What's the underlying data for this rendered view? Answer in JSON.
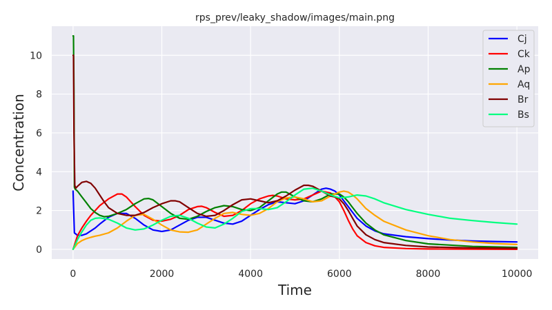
{
  "chart_data": {
    "type": "line",
    "title": "rps_prev/leaky_shadow/images/main.png",
    "xlabel": "Time",
    "ylabel": "Concentration",
    "xlim": [
      -480,
      10480
    ],
    "ylim": [
      -0.5,
      11.5
    ],
    "xticks": [
      0,
      2000,
      4000,
      6000,
      8000,
      10000
    ],
    "yticks": [
      0,
      2,
      4,
      6,
      8,
      10
    ],
    "grid": true,
    "legend_position": "top-right",
    "series": [
      {
        "name": "Cj",
        "color": "#0000ff",
        "x": [
          0,
          30,
          100,
          200,
          300,
          400,
          500,
          600,
          800,
          1000,
          1200,
          1400,
          1600,
          1800,
          2000,
          2200,
          2400,
          2600,
          2800,
          3000,
          3200,
          3400,
          3600,
          3800,
          4000,
          4200,
          4400,
          4600,
          4800,
          5000,
          5200,
          5400,
          5600,
          5700,
          5800,
          5900,
          6000,
          6100,
          6200,
          6300,
          6400,
          6600,
          6800,
          7000,
          7500,
          8000,
          8500,
          9000,
          9500,
          10000
        ],
        "y": [
          3.0,
          0.85,
          0.72,
          0.72,
          0.8,
          0.95,
          1.1,
          1.3,
          1.65,
          1.85,
          1.85,
          1.6,
          1.25,
          1.0,
          0.92,
          1.0,
          1.25,
          1.5,
          1.65,
          1.65,
          1.5,
          1.35,
          1.3,
          1.45,
          1.75,
          2.05,
          2.3,
          2.45,
          2.4,
          2.35,
          2.5,
          2.8,
          3.1,
          3.15,
          3.1,
          3.0,
          2.8,
          2.5,
          2.2,
          1.9,
          1.6,
          1.2,
          0.95,
          0.8,
          0.65,
          0.55,
          0.48,
          0.43,
          0.4,
          0.38
        ]
      },
      {
        "name": "Ck",
        "color": "#ff0000",
        "x": [
          0,
          100,
          200,
          300,
          400,
          500,
          600,
          800,
          1000,
          1100,
          1200,
          1400,
          1600,
          1800,
          2000,
          2200,
          2400,
          2600,
          2800,
          2900,
          3000,
          3200,
          3400,
          3600,
          3800,
          4000,
          4200,
          4400,
          4500,
          4600,
          4800,
          5000,
          5200,
          5400,
          5600,
          5800,
          5900,
          6000,
          6100,
          6200,
          6300,
          6400,
          6600,
          6800,
          7000,
          7500,
          8000,
          9000,
          10000
        ],
        "y": [
          0.0,
          0.7,
          1.1,
          1.45,
          1.75,
          2.0,
          2.25,
          2.6,
          2.85,
          2.85,
          2.7,
          2.2,
          1.75,
          1.5,
          1.45,
          1.55,
          1.75,
          2.05,
          2.2,
          2.22,
          2.15,
          1.9,
          1.7,
          1.75,
          2.0,
          2.35,
          2.6,
          2.75,
          2.78,
          2.75,
          2.6,
          2.55,
          2.6,
          2.8,
          3.0,
          2.9,
          2.7,
          2.45,
          2.0,
          1.5,
          1.05,
          0.7,
          0.35,
          0.18,
          0.1,
          0.04,
          0.02,
          0.01,
          0.0
        ]
      },
      {
        "name": "Ap",
        "color": "#008000",
        "x": [
          0,
          10,
          20,
          30,
          50,
          100,
          200,
          300,
          400,
          500,
          600,
          700,
          800,
          1000,
          1200,
          1400,
          1600,
          1700,
          1800,
          2000,
          2200,
          2400,
          2600,
          2800,
          3000,
          3200,
          3400,
          3600,
          3800,
          4000,
          4200,
          4400,
          4600,
          4700,
          4800,
          5000,
          5200,
          5400,
          5600,
          5800,
          6000,
          6100,
          6200,
          6300,
          6400,
          6500,
          6600,
          6800,
          7000,
          7500,
          8000,
          9000,
          10000
        ],
        "y": [
          11.0,
          11.0,
          8.0,
          3.2,
          3.1,
          3.0,
          2.7,
          2.4,
          2.1,
          1.9,
          1.75,
          1.68,
          1.7,
          1.85,
          2.05,
          2.35,
          2.6,
          2.62,
          2.55,
          2.2,
          1.85,
          1.6,
          1.55,
          1.7,
          1.95,
          2.15,
          2.25,
          2.2,
          2.05,
          2.0,
          2.15,
          2.5,
          2.85,
          2.95,
          2.95,
          2.7,
          2.5,
          2.45,
          2.6,
          2.85,
          2.85,
          2.7,
          2.45,
          2.15,
          1.85,
          1.6,
          1.35,
          1.0,
          0.75,
          0.45,
          0.28,
          0.15,
          0.1
        ]
      },
      {
        "name": "Aq",
        "color": "#ffa500",
        "x": [
          0,
          100,
          200,
          300,
          400,
          500,
          600,
          800,
          1000,
          1200,
          1400,
          1600,
          1800,
          2000,
          2200,
          2400,
          2600,
          2800,
          3000,
          3200,
          3400,
          3600,
          3800,
          4000,
          4200,
          4400,
          4600,
          4800,
          5000,
          5200,
          5400,
          5600,
          5800,
          6000,
          6100,
          6200,
          6300,
          6400,
          6500,
          6600,
          6800,
          7000,
          7500,
          8000,
          8500,
          9000,
          9500,
          10000
        ],
        "y": [
          0.0,
          0.3,
          0.45,
          0.55,
          0.62,
          0.68,
          0.72,
          0.85,
          1.1,
          1.45,
          1.75,
          1.8,
          1.55,
          1.25,
          1.0,
          0.9,
          0.88,
          1.0,
          1.3,
          1.6,
          1.85,
          1.9,
          1.8,
          1.75,
          1.85,
          2.1,
          2.45,
          2.65,
          2.7,
          2.6,
          2.45,
          2.5,
          2.75,
          2.95,
          3.0,
          2.95,
          2.8,
          2.6,
          2.35,
          2.1,
          1.75,
          1.45,
          1.0,
          0.7,
          0.5,
          0.38,
          0.3,
          0.25
        ]
      },
      {
        "name": "Br",
        "color": "#800000",
        "x": [
          0,
          10,
          20,
          40,
          60,
          100,
          200,
          300,
          400,
          500,
          600,
          700,
          800,
          1000,
          1200,
          1400,
          1600,
          1800,
          2000,
          2200,
          2300,
          2400,
          2600,
          2800,
          3000,
          3200,
          3400,
          3600,
          3800,
          4000,
          4200,
          4400,
          4600,
          4800,
          5000,
          5200,
          5300,
          5400,
          5600,
          5800,
          5900,
          6000,
          6100,
          6200,
          6300,
          6400,
          6600,
          6800,
          7000,
          7500,
          8000,
          9000,
          10000
        ],
        "y": [
          10.0,
          10.0,
          6.0,
          3.3,
          3.15,
          3.25,
          3.45,
          3.5,
          3.4,
          3.15,
          2.8,
          2.45,
          2.15,
          1.85,
          1.75,
          1.75,
          1.9,
          2.15,
          2.35,
          2.5,
          2.5,
          2.45,
          2.15,
          1.85,
          1.7,
          1.75,
          2.0,
          2.3,
          2.55,
          2.6,
          2.5,
          2.4,
          2.5,
          2.75,
          3.05,
          3.3,
          3.3,
          3.25,
          3.0,
          2.75,
          2.7,
          2.6,
          2.35,
          2.0,
          1.6,
          1.2,
          0.75,
          0.5,
          0.35,
          0.2,
          0.12,
          0.07,
          0.05
        ]
      },
      {
        "name": "Bs",
        "color": "#00ff7f",
        "x": [
          0,
          100,
          200,
          300,
          400,
          500,
          600,
          800,
          1000,
          1200,
          1400,
          1600,
          1800,
          2000,
          2200,
          2400,
          2600,
          2800,
          3000,
          3200,
          3400,
          3600,
          3800,
          4000,
          4200,
          4400,
          4600,
          4800,
          5000,
          5200,
          5400,
          5600,
          5800,
          6000,
          6200,
          6400,
          6600,
          6800,
          7000,
          7500,
          8000,
          8500,
          9000,
          9500,
          10000
        ],
        "y": [
          0.0,
          0.5,
          0.9,
          1.25,
          1.5,
          1.6,
          1.62,
          1.55,
          1.35,
          1.1,
          1.0,
          1.05,
          1.25,
          1.5,
          1.7,
          1.75,
          1.6,
          1.35,
          1.15,
          1.1,
          1.3,
          1.6,
          1.95,
          2.1,
          2.1,
          2.05,
          2.15,
          2.45,
          2.8,
          3.1,
          3.15,
          3.0,
          2.8,
          2.65,
          2.7,
          2.8,
          2.75,
          2.6,
          2.4,
          2.05,
          1.8,
          1.6,
          1.48,
          1.38,
          1.3
        ]
      }
    ]
  }
}
